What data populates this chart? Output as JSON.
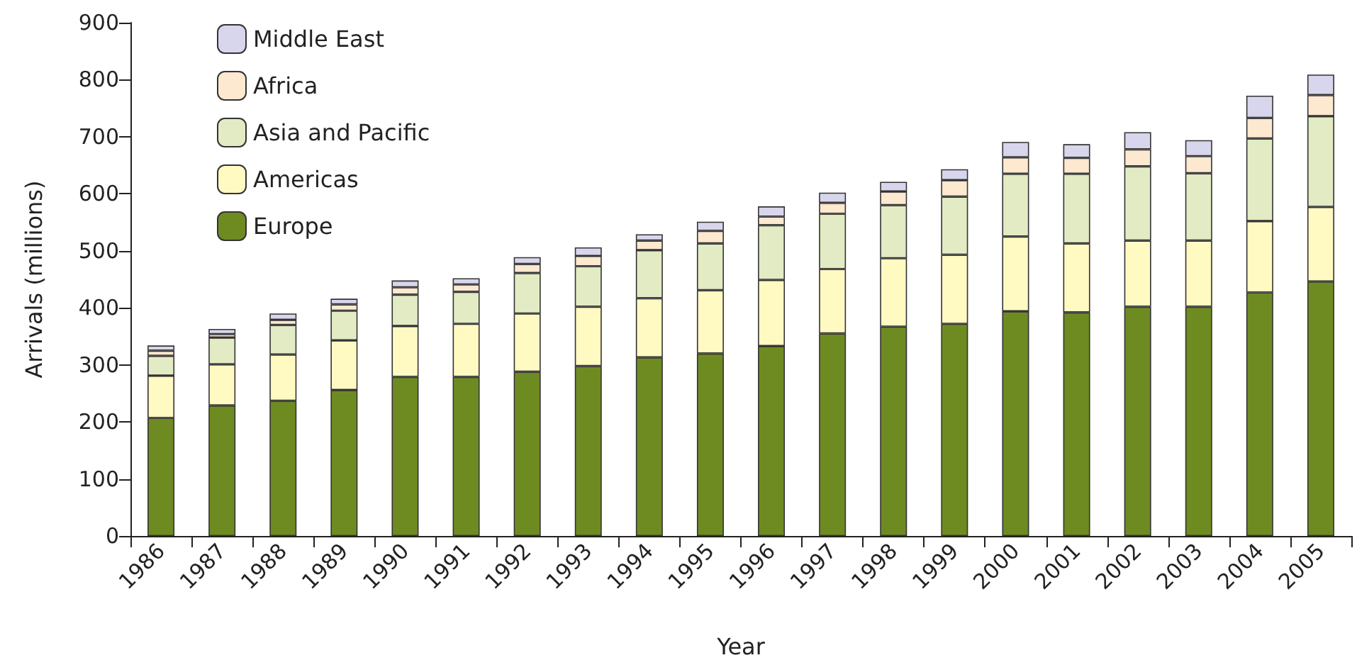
{
  "chart_data": {
    "type": "bar",
    "stacked": true,
    "xlabel": "Year",
    "ylabel": "Arrivals (millions)",
    "categories": [
      "1986",
      "1987",
      "1988",
      "1989",
      "1990",
      "1991",
      "1992",
      "1993",
      "1994",
      "1995",
      "1996",
      "1997",
      "1998",
      "1999",
      "2000",
      "2001",
      "2002",
      "2003",
      "2004",
      "2005"
    ],
    "series": [
      {
        "name": "Europe",
        "color": "#6e8b22",
        "values": [
          207,
          229,
          237,
          256,
          279,
          279,
          288,
          298,
          313,
          320,
          333,
          355,
          367,
          372,
          394,
          392,
          402,
          402,
          427,
          446
        ]
      },
      {
        "name": "Americas",
        "color": "#fff9c2",
        "values": [
          74,
          72,
          81,
          87,
          89,
          93,
          102,
          104,
          104,
          111,
          116,
          113,
          120,
          121,
          131,
          121,
          116,
          116,
          125,
          131
        ]
      },
      {
        "name": "Asia and Pacific",
        "color": "#e2ebc3",
        "values": [
          35,
          47,
          52,
          52,
          55,
          56,
          71,
          71,
          84,
          82,
          96,
          97,
          93,
          102,
          110,
          122,
          130,
          118,
          145,
          159
        ]
      },
      {
        "name": "Africa",
        "color": "#fde8d0",
        "values": [
          9,
          6,
          9,
          11,
          13,
          13,
          16,
          18,
          17,
          22,
          15,
          19,
          24,
          29,
          29,
          28,
          30,
          30,
          36,
          37
        ]
      },
      {
        "name": "Middle East",
        "color": "#d8d6ec",
        "values": [
          9,
          9,
          11,
          10,
          12,
          11,
          12,
          15,
          11,
          16,
          18,
          18,
          17,
          19,
          27,
          24,
          30,
          28,
          39,
          36
        ]
      }
    ],
    "ylim": [
      0,
      900
    ],
    "yticks": [
      0,
      100,
      200,
      300,
      400,
      500,
      600,
      700,
      800,
      900
    ],
    "grid": false,
    "legend": "top left"
  }
}
